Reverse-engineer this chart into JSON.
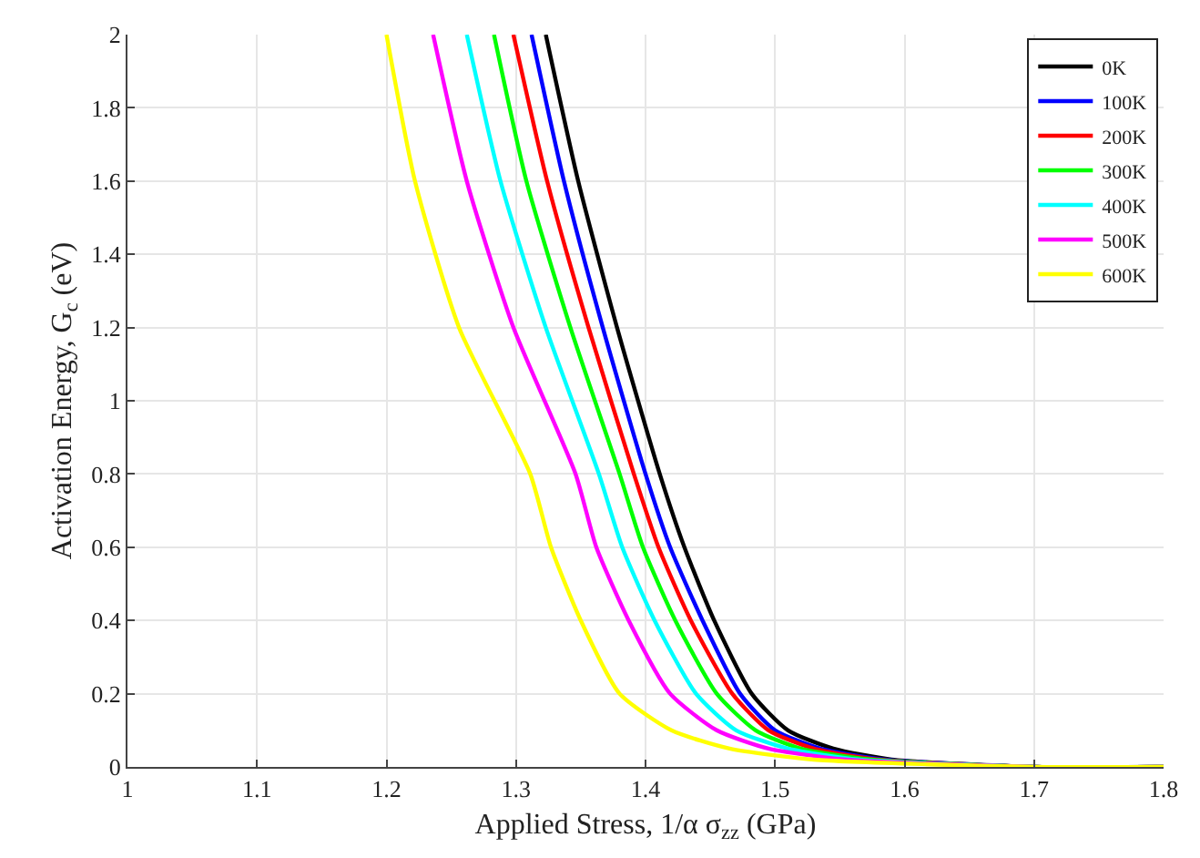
{
  "chart_data": {
    "type": "line",
    "xlabel": "Applied Stress, 1/α σ$_{zz}$ (GPa)",
    "ylabel": "Activation Energy, G$_{c}$ (eV)",
    "xlim": [
      1,
      1.8
    ],
    "xticks": [
      1,
      1.1,
      1.2,
      1.3,
      1.4,
      1.5,
      1.6,
      1.7,
      1.8
    ],
    "ylim": [
      0,
      2
    ],
    "yticks": [
      0,
      0.2,
      0.4,
      0.6,
      0.8,
      1,
      1.2,
      1.4,
      1.6,
      1.8,
      2
    ],
    "grid": true,
    "legend": "top right",
    "marker": "none",
    "line_style": "solid",
    "series": [
      {
        "name": "0K",
        "color": "#000000",
        "x": [
          1.323,
          1.348,
          1.378,
          1.411,
          1.43,
          1.453,
          1.482,
          1.51,
          1.545,
          1.59,
          1.7,
          1.8
        ],
        "values": [
          2,
          1.6,
          1.2,
          0.8,
          0.6,
          0.4,
          0.2,
          0.1,
          0.05,
          0.02,
          0,
          0
        ]
      },
      {
        "name": "100K",
        "color": "#0000ff",
        "x": [
          1.312,
          1.337,
          1.367,
          1.4,
          1.419,
          1.444,
          1.473,
          1.5,
          1.535,
          1.585,
          1.7,
          1.8
        ],
        "values": [
          2,
          1.6,
          1.2,
          0.8,
          0.6,
          0.4,
          0.2,
          0.1,
          0.05,
          0.02,
          0,
          0
        ]
      },
      {
        "name": "200K",
        "color": "#ff0000",
        "x": [
          1.298,
          1.324,
          1.356,
          1.391,
          1.41,
          1.435,
          1.467,
          1.495,
          1.53,
          1.58,
          1.7,
          1.8
        ],
        "values": [
          2,
          1.6,
          1.2,
          0.8,
          0.6,
          0.4,
          0.2,
          0.1,
          0.05,
          0.02,
          0,
          0
        ]
      },
      {
        "name": "300K",
        "color": "#00ff00",
        "x": [
          1.283,
          1.308,
          1.342,
          1.38,
          1.398,
          1.423,
          1.455,
          1.485,
          1.52,
          1.575,
          1.7,
          1.8
        ],
        "values": [
          2,
          1.6,
          1.2,
          0.8,
          0.6,
          0.4,
          0.2,
          0.1,
          0.05,
          0.02,
          0,
          0
        ]
      },
      {
        "name": "400K",
        "color": "#00ffff",
        "x": [
          1.262,
          1.288,
          1.323,
          1.364,
          1.382,
          1.407,
          1.439,
          1.47,
          1.51,
          1.565,
          1.7,
          1.8
        ],
        "values": [
          2,
          1.6,
          1.2,
          0.8,
          0.6,
          0.4,
          0.2,
          0.1,
          0.05,
          0.02,
          0,
          0
        ]
      },
      {
        "name": "500K",
        "color": "#ff00ff",
        "x": [
          1.236,
          1.262,
          1.298,
          1.346,
          1.362,
          1.387,
          1.419,
          1.455,
          1.495,
          1.555,
          1.7,
          1.8
        ],
        "values": [
          2,
          1.6,
          1.2,
          0.8,
          0.6,
          0.4,
          0.2,
          0.1,
          0.05,
          0.02,
          0,
          0
        ]
      },
      {
        "name": "600K",
        "color": "#ffff00",
        "x": [
          1.2,
          1.222,
          1.256,
          1.311,
          1.327,
          1.35,
          1.38,
          1.42,
          1.465,
          1.53,
          1.7,
          1.8
        ],
        "values": [
          2,
          1.6,
          1.2,
          0.8,
          0.6,
          0.4,
          0.2,
          0.1,
          0.05,
          0.02,
          0,
          0
        ]
      }
    ]
  }
}
